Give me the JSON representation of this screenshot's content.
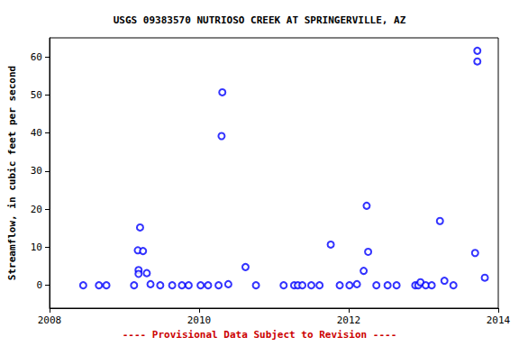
{
  "chart_data": {
    "type": "scatter",
    "title": "USGS 09383570 NUTRIOSO CREEK AT SPRINGERVILLE, AZ",
    "y_label": "Streamflow, in cubic feet per second",
    "annotations": [
      "---- Provisional Data Subject to Revision ----"
    ],
    "x": [
      2008.45,
      2008.66,
      2008.76,
      2009.13,
      2009.18,
      2009.19,
      2009.19,
      2009.21,
      2009.25,
      2009.3,
      2009.35,
      2009.48,
      2009.64,
      2009.77,
      2009.86,
      2010.02,
      2010.12,
      2010.26,
      2010.3,
      2010.31,
      2010.39,
      2010.62,
      2010.76,
      2011.13,
      2011.27,
      2011.32,
      2011.38,
      2011.5,
      2011.61,
      2011.76,
      2011.88,
      2012.01,
      2012.11,
      2012.2,
      2012.24,
      2012.26,
      2012.37,
      2012.52,
      2012.64,
      2012.89,
      2012.93,
      2012.96,
      2013.03,
      2013.11,
      2013.22,
      2013.28,
      2013.4,
      2013.69,
      2013.72,
      2013.72,
      2013.82
    ],
    "values": [
      0,
      0,
      0,
      0,
      9.2,
      4,
      3,
      15.2,
      9,
      3.2,
      0.3,
      0,
      0,
      0,
      0,
      0,
      0,
      0,
      39.2,
      50.7,
      0.3,
      4.8,
      0,
      0,
      0,
      0,
      0,
      0,
      0,
      10.7,
      0,
      0,
      0.3,
      3.8,
      20.9,
      8.8,
      0,
      0,
      0,
      0,
      0,
      0.8,
      0,
      0,
      16.9,
      1.2,
      0,
      8.5,
      58.8,
      61.6,
      2
    ],
    "color": "#0000ff",
    "marker": "circle_open",
    "xlim": [
      2008,
      2014
    ],
    "xticks": [
      2008,
      2010,
      2012,
      2014
    ],
    "ylim": [
      -6,
      65
    ],
    "yticks": [
      0,
      10,
      20,
      30,
      40,
      50,
      60
    ],
    "grid": false
  }
}
